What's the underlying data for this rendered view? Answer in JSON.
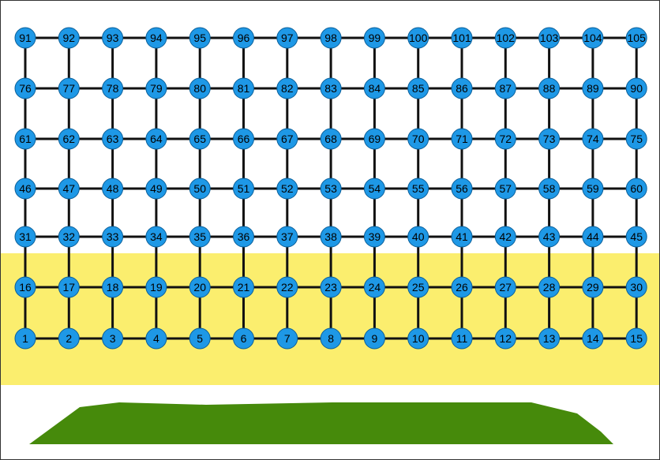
{
  "colors": {
    "node_fill": "#1e98e6",
    "node_stroke": "#0b5f99",
    "edge": "#111111",
    "band": "#fbee6e",
    "ground": "#468a0b",
    "frame": "#333333"
  },
  "grid": {
    "rows": 7,
    "cols": 15,
    "node_labels": [
      [
        "91",
        "92",
        "93",
        "94",
        "95",
        "96",
        "97",
        "98",
        "99",
        "100",
        "101",
        "102",
        "103",
        "104",
        "105"
      ],
      [
        "76",
        "77",
        "78",
        "79",
        "80",
        "81",
        "82",
        "83",
        "84",
        "85",
        "86",
        "87",
        "88",
        "89",
        "90"
      ],
      [
        "61",
        "62",
        "63",
        "64",
        "65",
        "66",
        "67",
        "68",
        "69",
        "70",
        "71",
        "72",
        "73",
        "74",
        "75"
      ],
      [
        "46",
        "47",
        "48",
        "49",
        "50",
        "51",
        "52",
        "53",
        "54",
        "55",
        "56",
        "57",
        "58",
        "59",
        "60"
      ],
      [
        "31",
        "32",
        "33",
        "34",
        "35",
        "36",
        "37",
        "38",
        "39",
        "40",
        "41",
        "42",
        "43",
        "44",
        "45"
      ],
      [
        "16",
        "17",
        "18",
        "19",
        "20",
        "21",
        "22",
        "23",
        "24",
        "25",
        "26",
        "27",
        "28",
        "29",
        "30"
      ],
      [
        "1",
        "2",
        "3",
        "4",
        "5",
        "6",
        "7",
        "8",
        "9",
        "10",
        "11",
        "12",
        "13",
        "14",
        "15"
      ]
    ]
  }
}
